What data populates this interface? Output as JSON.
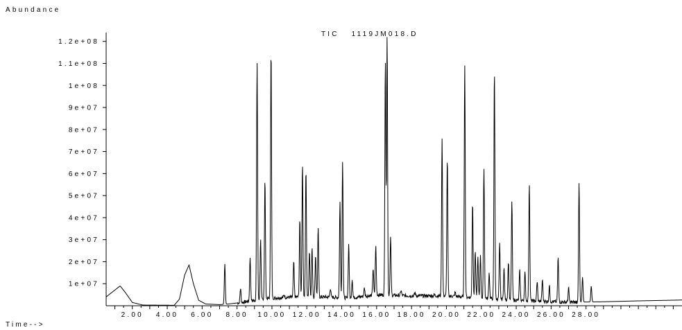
{
  "chart_data": {
    "type": "line",
    "title": "TIC   1119JM018.D",
    "ylabel": "Abundance",
    "xlabel": "Time-->",
    "xlim": [
      0.5,
      33.5
    ],
    "ylim": [
      0,
      124000000
    ],
    "x_ticks": [
      2,
      4,
      6,
      8,
      10,
      12,
      14,
      16,
      18,
      20,
      22,
      24,
      26,
      28
    ],
    "x_tick_labels": [
      "2.00",
      "4.00",
      "6.00",
      "8.00",
      "10.00",
      "12.00",
      "14.00",
      "16.00",
      "18.00",
      "20.00",
      "22.00",
      "24.00",
      "26.00",
      "28.00"
    ],
    "y_ticks": [
      10000000,
      20000000,
      30000000,
      40000000,
      50000000,
      60000000,
      70000000,
      80000000,
      90000000,
      100000000,
      110000000,
      120000000
    ],
    "y_tick_labels": [
      "1e+07",
      "2e+07",
      "3e+07",
      "4e+07",
      "5e+07",
      "6e+07",
      "7e+07",
      "8e+07",
      "9e+07",
      "1e+08",
      "1.1e+08",
      "1.2e+08"
    ],
    "baseline_points": [
      [
        0.5,
        4000000
      ],
      [
        1.3,
        9000000
      ],
      [
        1.6,
        6000000
      ],
      [
        2.0,
        1500000
      ],
      [
        2.6,
        300000
      ],
      [
        4.4,
        200000
      ],
      [
        4.7,
        3000000
      ],
      [
        5.0,
        14000000
      ],
      [
        5.25,
        18500000
      ],
      [
        5.5,
        10000000
      ],
      [
        5.8,
        2500000
      ],
      [
        6.2,
        800000
      ],
      [
        7.0,
        500000
      ],
      [
        7.5,
        800000
      ],
      [
        8.3,
        1500000
      ],
      [
        9.0,
        2500000
      ],
      [
        10.0,
        3500000
      ],
      [
        11.5,
        4000000
      ],
      [
        13.0,
        4000000
      ],
      [
        14.5,
        3500000
      ],
      [
        16.0,
        5000000
      ],
      [
        18.0,
        4500000
      ],
      [
        20.0,
        4500000
      ],
      [
        22.0,
        3500000
      ],
      [
        24.0,
        2500000
      ],
      [
        25.5,
        2000000
      ],
      [
        27.0,
        1600000
      ],
      [
        29.0,
        1800000
      ],
      [
        31.0,
        2200000
      ],
      [
        33.5,
        2600000
      ]
    ],
    "peaks": [
      [
        7.3,
        19000000
      ],
      [
        8.2,
        8000000
      ],
      [
        8.75,
        22000000
      ],
      [
        9.15,
        111000000
      ],
      [
        9.35,
        30000000
      ],
      [
        9.6,
        57000000
      ],
      [
        9.95,
        117000000
      ],
      [
        10.7,
        5000000
      ],
      [
        11.25,
        20000000
      ],
      [
        11.6,
        39000000
      ],
      [
        11.75,
        64000000
      ],
      [
        11.95,
        62000000
      ],
      [
        12.15,
        25000000
      ],
      [
        12.3,
        26000000
      ],
      [
        12.5,
        23000000
      ],
      [
        12.65,
        35000000
      ],
      [
        13.35,
        8000000
      ],
      [
        13.9,
        47000000
      ],
      [
        14.05,
        66000000
      ],
      [
        14.4,
        28000000
      ],
      [
        14.6,
        12000000
      ],
      [
        15.3,
        8000000
      ],
      [
        15.8,
        17000000
      ],
      [
        15.95,
        27000000
      ],
      [
        16.3,
        4000000
      ],
      [
        16.5,
        112000000
      ],
      [
        16.6,
        123000000
      ],
      [
        16.8,
        31000000
      ],
      [
        17.4,
        7000000
      ],
      [
        18.2,
        6000000
      ],
      [
        19.3,
        5000000
      ],
      [
        19.75,
        76000000
      ],
      [
        20.05,
        67000000
      ],
      [
        20.5,
        6000000
      ],
      [
        21.05,
        110000000
      ],
      [
        21.5,
        47000000
      ],
      [
        21.65,
        25000000
      ],
      [
        21.8,
        22000000
      ],
      [
        21.95,
        23000000
      ],
      [
        22.15,
        63000000
      ],
      [
        22.45,
        15000000
      ],
      [
        22.75,
        107000000
      ],
      [
        23.05,
        28000000
      ],
      [
        23.3,
        17000000
      ],
      [
        23.55,
        20000000
      ],
      [
        23.75,
        48000000
      ],
      [
        24.2,
        16000000
      ],
      [
        24.5,
        15000000
      ],
      [
        24.75,
        56000000
      ],
      [
        25.2,
        11000000
      ],
      [
        25.5,
        12000000
      ],
      [
        25.9,
        9000000
      ],
      [
        26.4,
        22000000
      ],
      [
        27.0,
        8000000
      ],
      [
        27.6,
        56000000
      ],
      [
        27.8,
        13000000
      ],
      [
        28.3,
        9000000
      ],
      [
        29.0,
        1800000
      ]
    ]
  }
}
